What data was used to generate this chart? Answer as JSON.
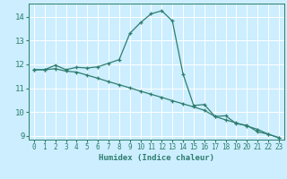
{
  "xlabel": "Humidex (Indice chaleur)",
  "bg_color": "#cceeff",
  "grid_color": "#ffffff",
  "line_color": "#2e7d6e",
  "xlim": [
    -0.5,
    23.5
  ],
  "ylim": [
    8.85,
    14.55
  ],
  "yticks": [
    9,
    10,
    11,
    12,
    13,
    14
  ],
  "xticks": [
    0,
    1,
    2,
    3,
    4,
    5,
    6,
    7,
    8,
    9,
    10,
    11,
    12,
    13,
    14,
    15,
    16,
    17,
    18,
    19,
    20,
    21,
    22,
    23
  ],
  "line1_x": [
    0,
    1,
    2,
    3,
    4,
    5,
    6,
    7,
    8,
    9,
    10,
    11,
    12,
    13,
    14,
    15,
    16,
    17,
    18,
    19,
    20,
    21,
    22,
    23
  ],
  "line1_y": [
    11.78,
    11.78,
    11.97,
    11.78,
    11.88,
    11.85,
    11.9,
    12.05,
    12.2,
    13.3,
    13.75,
    14.12,
    14.25,
    13.82,
    11.6,
    10.28,
    10.32,
    9.82,
    9.85,
    9.52,
    9.45,
    9.18,
    9.08,
    8.93
  ],
  "line2_x": [
    0,
    1,
    2,
    3,
    4,
    5,
    6,
    7,
    8,
    9,
    10,
    11,
    12,
    13,
    14,
    15,
    16,
    17,
    18,
    19,
    20,
    21,
    22,
    23
  ],
  "line2_y": [
    11.78,
    11.78,
    11.82,
    11.72,
    11.68,
    11.55,
    11.42,
    11.28,
    11.15,
    11.02,
    10.88,
    10.75,
    10.62,
    10.48,
    10.35,
    10.22,
    10.08,
    9.82,
    9.68,
    9.55,
    9.42,
    9.28,
    9.08,
    8.93
  ]
}
